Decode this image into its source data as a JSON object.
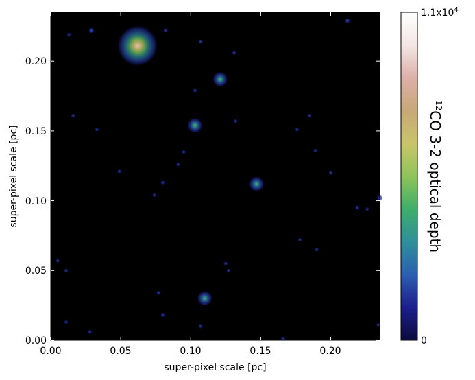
{
  "chart_data": {
    "type": "heatmap",
    "title": "",
    "xlabel": "super-pixel scale [pc]",
    "ylabel": "super-pixel scale [pc]",
    "xlim": [
      0.0,
      0.235
    ],
    "ylim": [
      0.0,
      0.235
    ],
    "xticks": [
      "0.00",
      "0.05",
      "0.10",
      "0.15",
      "0.20"
    ],
    "xtick_values": [
      0.0,
      0.05,
      0.1,
      0.15,
      0.2
    ],
    "yticks": [
      "0.00",
      "0.05",
      "0.10",
      "0.15",
      "0.20"
    ],
    "ytick_values": [
      0.0,
      0.05,
      0.1,
      0.15,
      0.2
    ],
    "colorbar": {
      "label_sup": "12",
      "label_main": "CO 3-2 optical depth",
      "min_label": "0",
      "max_label": "1.1x10",
      "max_label_exp": "4",
      "range": [
        0,
        11000
      ],
      "colormap": [
        "#0b0a3d",
        "#1c1f8c",
        "#2b5fb0",
        "#2f8f9a",
        "#3fae6a",
        "#8fc45a",
        "#c9c46a",
        "#c8a878",
        "#dcb0a8",
        "#f3e6e4",
        "#ffffff"
      ]
    },
    "grid": false,
    "background": "#000000",
    "sources": [
      {
        "x": 0.062,
        "y": 0.211,
        "level": 0.75
      },
      {
        "x": 0.121,
        "y": 0.187,
        "level": 0.35
      },
      {
        "x": 0.103,
        "y": 0.154,
        "level": 0.35
      },
      {
        "x": 0.147,
        "y": 0.112,
        "level": 0.33
      },
      {
        "x": 0.11,
        "y": 0.03,
        "level": 0.33
      },
      {
        "x": 0.212,
        "y": 0.229,
        "level": 0.12
      },
      {
        "x": 0.029,
        "y": 0.222,
        "level": 0.12
      },
      {
        "x": 0.082,
        "y": 0.222,
        "level": 0.1
      },
      {
        "x": 0.013,
        "y": 0.219,
        "level": 0.08
      },
      {
        "x": 0.107,
        "y": 0.214,
        "level": 0.1
      },
      {
        "x": 0.131,
        "y": 0.206,
        "level": 0.1
      },
      {
        "x": 0.103,
        "y": 0.179,
        "level": 0.1
      },
      {
        "x": 0.016,
        "y": 0.161,
        "level": 0.1
      },
      {
        "x": 0.185,
        "y": 0.161,
        "level": 0.1
      },
      {
        "x": 0.132,
        "y": 0.157,
        "level": 0.1
      },
      {
        "x": 0.176,
        "y": 0.151,
        "level": 0.1
      },
      {
        "x": 0.033,
        "y": 0.151,
        "level": 0.1
      },
      {
        "x": 0.189,
        "y": 0.136,
        "level": 0.1
      },
      {
        "x": 0.095,
        "y": 0.135,
        "level": 0.1
      },
      {
        "x": 0.091,
        "y": 0.126,
        "level": 0.1
      },
      {
        "x": 0.049,
        "y": 0.121,
        "level": 0.1
      },
      {
        "x": 0.2,
        "y": 0.12,
        "level": 0.1
      },
      {
        "x": 0.08,
        "y": 0.113,
        "level": 0.1
      },
      {
        "x": 0.074,
        "y": 0.104,
        "level": 0.08
      },
      {
        "x": 0.219,
        "y": 0.095,
        "level": 0.1
      },
      {
        "x": 0.226,
        "y": 0.094,
        "level": 0.1
      },
      {
        "x": 0.235,
        "y": 0.102,
        "level": 0.15
      },
      {
        "x": 0.178,
        "y": 0.072,
        "level": 0.1
      },
      {
        "x": 0.19,
        "y": 0.065,
        "level": 0.1
      },
      {
        "x": 0.005,
        "y": 0.057,
        "level": 0.1
      },
      {
        "x": 0.125,
        "y": 0.055,
        "level": 0.1
      },
      {
        "x": 0.127,
        "y": 0.05,
        "level": 0.1
      },
      {
        "x": 0.011,
        "y": 0.05,
        "level": 0.1
      },
      {
        "x": 0.077,
        "y": 0.034,
        "level": 0.1
      },
      {
        "x": 0.08,
        "y": 0.018,
        "level": 0.1
      },
      {
        "x": 0.011,
        "y": 0.013,
        "level": 0.1
      },
      {
        "x": 0.107,
        "y": 0.01,
        "level": 0.1
      },
      {
        "x": 0.234,
        "y": 0.011,
        "level": 0.1
      },
      {
        "x": 0.028,
        "y": 0.006,
        "level": 0.1
      },
      {
        "x": 0.166,
        "y": 0.001,
        "level": 0.08
      }
    ]
  }
}
